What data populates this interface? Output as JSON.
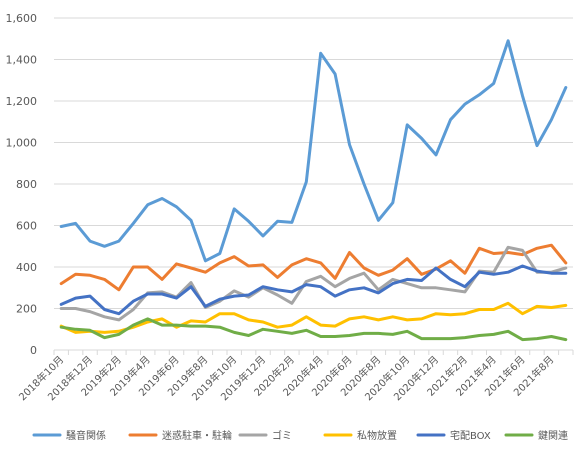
{
  "chart_data": {
    "type": "line",
    "ylim": [
      0,
      1600
    ],
    "yticks": [
      0,
      200,
      400,
      600,
      800,
      1000,
      1200,
      1400,
      1600
    ],
    "ytick_labels": [
      "0",
      "200",
      "400",
      "600",
      "800",
      "1,000",
      "1,200",
      "1,400",
      "1,600"
    ],
    "grid": "horizontal",
    "legend_position": "bottom",
    "x": [
      "2018年10月",
      "2018年11月",
      "2018年12月",
      "2019年1月",
      "2019年2月",
      "2019年3月",
      "2019年4月",
      "2019年5月",
      "2019年6月",
      "2019年7月",
      "2019年8月",
      "2019年9月",
      "2019年10月",
      "2019年11月",
      "2019年12月",
      "2020年1月",
      "2020年2月",
      "2020年3月",
      "2020年4月",
      "2020年5月",
      "2020年6月",
      "2020年7月",
      "2020年8月",
      "2020年9月",
      "2020年10月",
      "2020年11月",
      "2020年12月",
      "2021年1月",
      "2021年2月",
      "2021年3月",
      "2021年4月",
      "2021年5月",
      "2021年6月",
      "2021年7月",
      "2021年8月",
      "2021年9月"
    ],
    "x_tick_labels": [
      "2018年10月",
      "2018年12月",
      "2019年2月",
      "2019年4月",
      "2019年6月",
      "2019年8月",
      "2019年10月",
      "2019年12月",
      "2020年2月",
      "2020年4月",
      "2020年6月",
      "2020年8月",
      "2020年10月",
      "2020年12月",
      "2021年2月",
      "2021年4月",
      "2021年6月",
      "2021年8月"
    ],
    "series": [
      {
        "name": "騒音関係",
        "color": "#5b9bd5",
        "values": [
          595,
          610,
          525,
          500,
          525,
          610,
          700,
          730,
          690,
          625,
          430,
          465,
          680,
          620,
          550,
          620,
          615,
          810,
          1430,
          1330,
          990,
          800,
          625,
          710,
          1085,
          1020,
          940,
          1110,
          1185,
          1230,
          1285,
          1490,
          1225,
          985,
          1110,
          1265
        ]
      },
      {
        "name": "迷惑駐車・駐輪",
        "color": "#ed7d31",
        "values": [
          320,
          365,
          360,
          340,
          290,
          400,
          400,
          340,
          415,
          395,
          375,
          420,
          450,
          405,
          410,
          350,
          410,
          440,
          420,
          345,
          470,
          395,
          360,
          385,
          440,
          365,
          390,
          430,
          370,
          490,
          465,
          470,
          460,
          490,
          505,
          420
        ]
      },
      {
        "name": "ゴミ",
        "color": "#a5a5a5",
        "values": [
          200,
          200,
          185,
          160,
          145,
          195,
          275,
          280,
          255,
          325,
          205,
          235,
          285,
          255,
          300,
          265,
          225,
          330,
          355,
          305,
          345,
          370,
          290,
          340,
          320,
          300,
          300,
          290,
          280,
          380,
          375,
          495,
          480,
          375,
          375,
          395
        ]
      },
      {
        "name": "私物放置",
        "color": "#ffc000",
        "values": [
          115,
          85,
          90,
          85,
          90,
          110,
          135,
          150,
          110,
          140,
          135,
          175,
          175,
          145,
          135,
          110,
          120,
          160,
          120,
          115,
          150,
          160,
          145,
          160,
          145,
          150,
          175,
          170,
          175,
          195,
          195,
          225,
          175,
          210,
          205,
          215
        ]
      },
      {
        "name": "宅配BOX",
        "color": "#4472c4",
        "values": [
          220,
          250,
          260,
          195,
          175,
          235,
          270,
          270,
          250,
          305,
          210,
          245,
          260,
          265,
          305,
          290,
          280,
          315,
          305,
          260,
          290,
          300,
          275,
          320,
          340,
          335,
          395,
          340,
          305,
          375,
          365,
          375,
          405,
          380,
          370,
          370
        ]
      },
      {
        "name": "鍵関連",
        "color": "#70ad47",
        "values": [
          110,
          100,
          95,
          60,
          75,
          120,
          150,
          120,
          120,
          115,
          115,
          110,
          85,
          70,
          100,
          90,
          80,
          95,
          65,
          65,
          70,
          80,
          80,
          75,
          90,
          55,
          55,
          55,
          60,
          70,
          75,
          90,
          50,
          55,
          65,
          50
        ]
      }
    ]
  }
}
